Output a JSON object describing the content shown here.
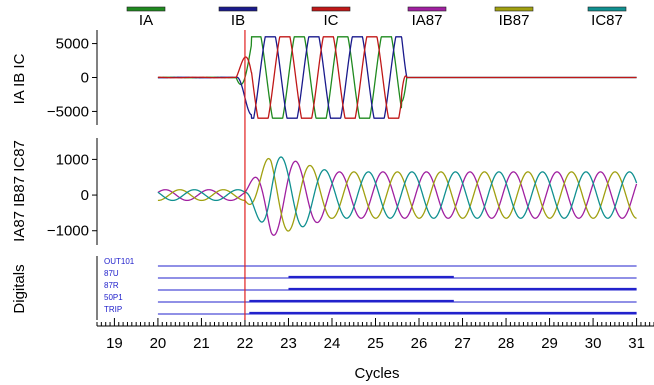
{
  "chart_data": {
    "type": "line",
    "x_axis": {
      "label": "Cycles",
      "range": [
        18.6,
        31.4
      ],
      "ticks": [
        "19",
        "20",
        "21",
        "22",
        "23",
        "24",
        "25",
        "26",
        "27",
        "28",
        "29",
        "30",
        "31"
      ]
    },
    "legend": {
      "placement": "top",
      "entries": [
        {
          "name": "IA",
          "color": "#1f8a1f"
        },
        {
          "name": "IB",
          "color": "#1a1a8c"
        },
        {
          "name": "IC",
          "color": "#c01818"
        },
        {
          "name": "IA87",
          "color": "#a020a0"
        },
        {
          "name": "IB87",
          "color": "#a0a010"
        },
        {
          "name": "IC87",
          "color": "#109090"
        }
      ]
    },
    "trigger_cycle": 22.0,
    "trigger_color": "#e02020",
    "panels": [
      {
        "ylabel": "IA IB IC",
        "ylim": [
          -7000,
          7000
        ],
        "ticks": [
          "5000",
          "0",
          "−5000"
        ],
        "tick_values": [
          5000,
          0,
          -5000
        ],
        "series": [
          {
            "name": "IA",
            "color": "#1f8a1f",
            "phase_deg": 0
          },
          {
            "name": "IB",
            "color": "#1a1a8c",
            "phase_deg": -120
          },
          {
            "name": "IC",
            "color": "#c01818",
            "phase_deg": 120
          }
        ],
        "pre_fault_amplitude": 40,
        "fault_start": 21.8,
        "fault_end": 25.6,
        "fault_amplitude": 6000,
        "start": 20.0,
        "end": 31.0
      },
      {
        "ylabel": "IA87 IB87 IC87",
        "ylim": [
          -1400,
          1600
        ],
        "ticks": [
          "1000",
          "0",
          "−1000"
        ],
        "tick_values": [
          1000,
          0,
          -1000
        ],
        "series": [
          {
            "name": "IA87",
            "color": "#a020a0",
            "phase_deg": 0
          },
          {
            "name": "IB87",
            "color": "#a0a010",
            "phase_deg": -120
          },
          {
            "name": "IC87",
            "color": "#109090",
            "phase_deg": 120
          }
        ],
        "pre_fault_amplitude": 150,
        "peak_amplitude": 1150,
        "steady_amplitude": 650,
        "start": 20.0,
        "end": 31.0
      },
      {
        "ylabel": "Digitals",
        "type": "digital",
        "channels": [
          {
            "name": "OUT101",
            "asserted": false
          },
          {
            "name": "87U",
            "asserted": true,
            "from": 23.0,
            "to": 26.8
          },
          {
            "name": "87R",
            "asserted": true,
            "from": 23.0,
            "to": 31.0
          },
          {
            "name": "50P1",
            "asserted": true,
            "from": 22.1,
            "to": 26.8
          },
          {
            "name": "TRIP",
            "asserted": true,
            "from": 22.1,
            "to": 31.0
          }
        ],
        "line_color": "#2222cc"
      }
    ]
  }
}
